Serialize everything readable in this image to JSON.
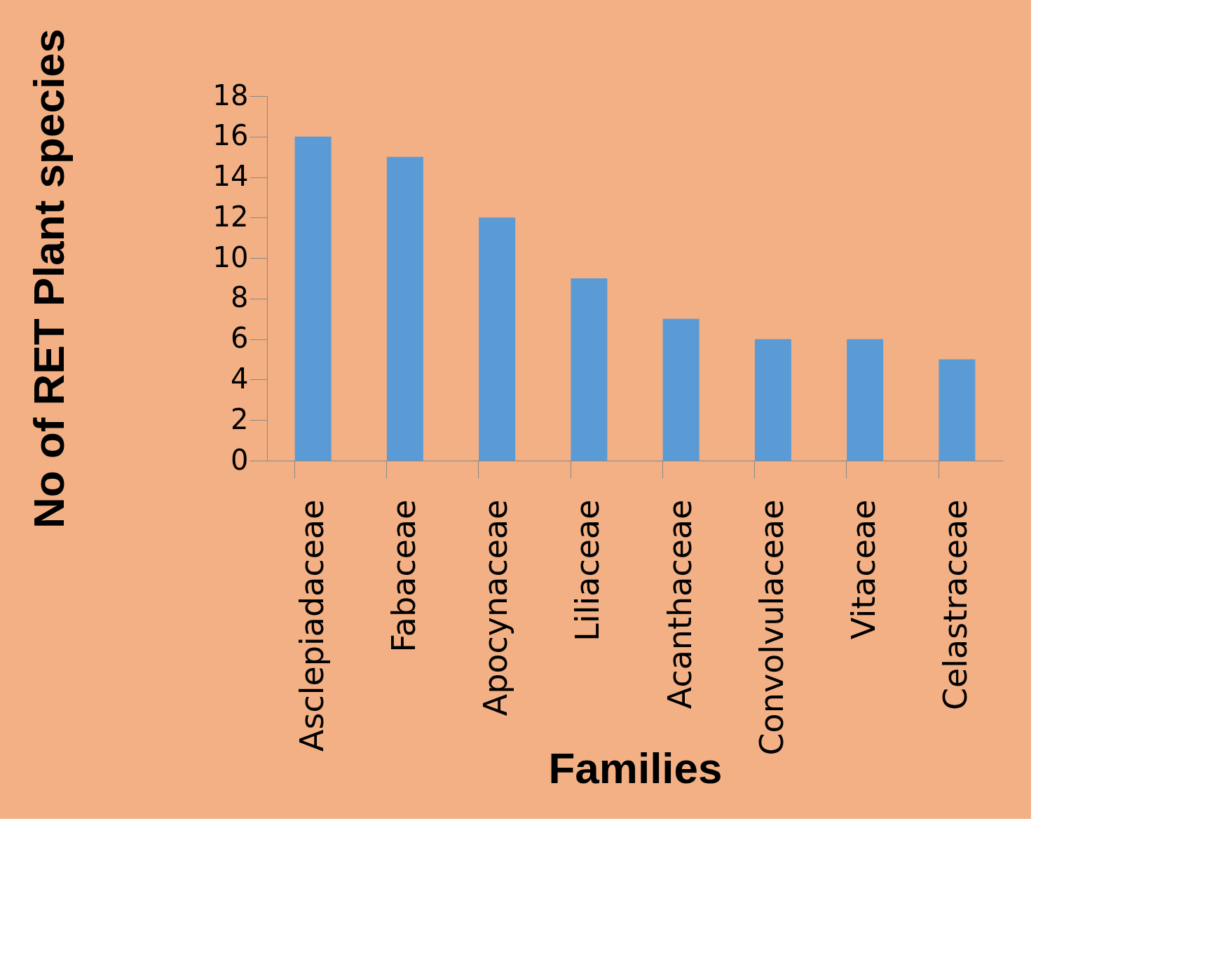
{
  "chart_data": {
    "type": "bar",
    "xlabel": "Families",
    "ylabel": "No of RET Plant species",
    "categories": [
      "Asclepiadaceae",
      "Fabaceae",
      "Apocynaceae",
      "Liliaceae",
      "Acanthaceae",
      "Convolvulaceae",
      "Vitaceae",
      "Celastraceae"
    ],
    "values": [
      16,
      15,
      12,
      9,
      7,
      6,
      6,
      5
    ],
    "color": "#5b9bd5",
    "ylim": [
      0,
      18
    ],
    "yticks": [
      0,
      2,
      4,
      6,
      8,
      10,
      12,
      14,
      16,
      18
    ],
    "grid": false
  }
}
